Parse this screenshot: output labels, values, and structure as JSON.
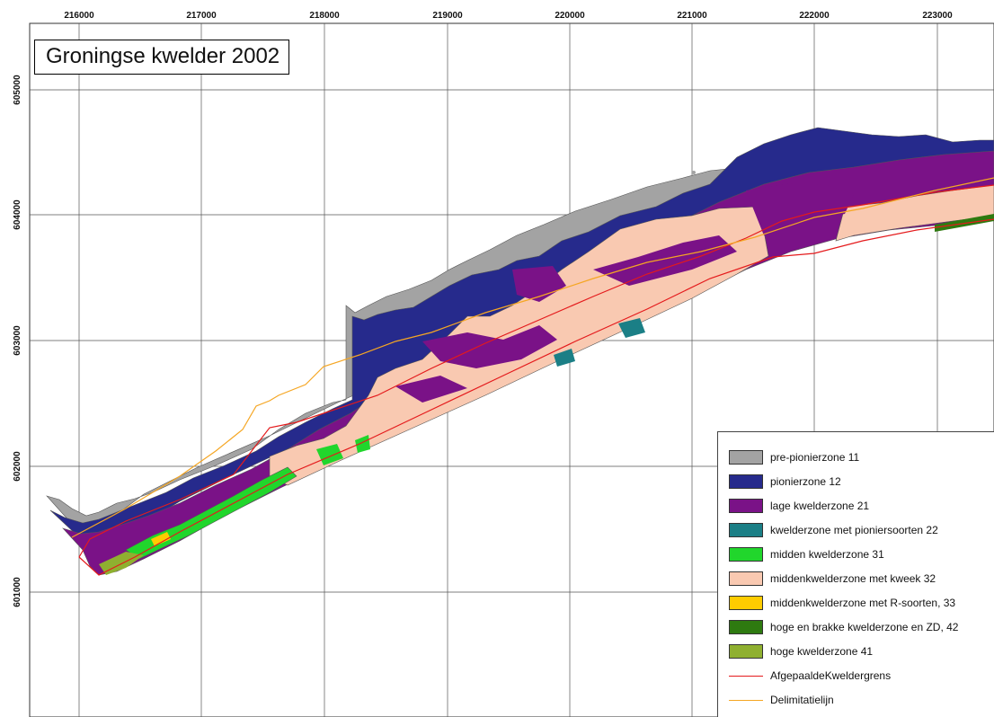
{
  "map": {
    "title": "Groningse kwelder 2002",
    "x_ticks": [
      "216000",
      "217000",
      "218000",
      "219000",
      "220000",
      "221000",
      "222000",
      "223000"
    ],
    "y_ticks": [
      "605000",
      "604000",
      "603000",
      "602000",
      "601000"
    ],
    "colors": {
      "grid": "#555555",
      "outline": "#555555",
      "afgepaalde": "#e41a1c",
      "delimitatie": "#f5a623"
    }
  },
  "legend": {
    "items": [
      {
        "label": "pre-pionierzone 11",
        "kind": "fill",
        "color": "#a3a3a3"
      },
      {
        "label": "pionierzone 12",
        "kind": "fill",
        "color": "#262a8c"
      },
      {
        "label": "lage kwelderzone 21",
        "kind": "fill",
        "color": "#7a1287"
      },
      {
        "label": "kwelderzone met pioniersoorten 22",
        "kind": "fill",
        "color": "#1b7f86"
      },
      {
        "label": "midden kwelderzone 31",
        "kind": "fill",
        "color": "#21d62c"
      },
      {
        "label": "middenkwelderzone met kweek 32",
        "kind": "fill",
        "color": "#f9c9b1"
      },
      {
        "label": "middenkwelderzone met R-soorten, 33",
        "kind": "fill",
        "color": "#ffcc00"
      },
      {
        "label": "hoge en brakke kwelderzone en ZD, 42",
        "kind": "fill",
        "color": "#2e7a10"
      },
      {
        "label": "hoge kwelderzone 41",
        "kind": "fill",
        "color": "#8fb030"
      },
      {
        "label": "AfgepaaldeKweldergrens",
        "kind": "line",
        "color": "#e41a1c"
      },
      {
        "label": "Delimitatielijn",
        "kind": "line",
        "color": "#f5a623"
      }
    ]
  }
}
